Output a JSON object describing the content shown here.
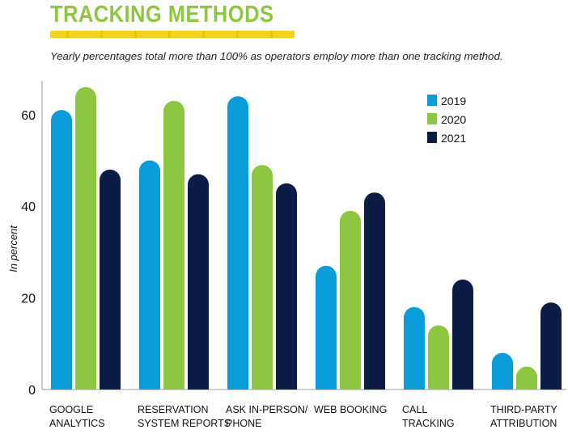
{
  "header": {
    "title": "TRACKING METHODS",
    "subtitle": "Yearly percentages total more than 100% as operators employ more than one tracking method."
  },
  "colors": {
    "title": "#8dc63f",
    "underline": "#f2d11f",
    "series_2019": "#0a9bd9",
    "series_2020": "#8dc63f",
    "series_2021": "#0c1c44",
    "axis": "#9a9a9a"
  },
  "chart_data": {
    "type": "bar",
    "categories": [
      [
        "GOOGLE",
        "ANALYTICS"
      ],
      [
        "RESERVATION",
        "SYSTEM REPORTS"
      ],
      [
        "ASK IN-PERSON/",
        "PHONE"
      ],
      [
        "WEB BOOKING"
      ],
      [
        "CALL",
        "TRACKING"
      ],
      [
        "THIRD-PARTY",
        "ATTRIBUTION"
      ]
    ],
    "series": [
      {
        "name": "2019",
        "color": "#0a9bd9",
        "values": [
          61,
          50,
          64,
          27,
          18,
          8
        ]
      },
      {
        "name": "2020",
        "color": "#8dc63f",
        "values": [
          66,
          63,
          49,
          39,
          14,
          5
        ]
      },
      {
        "name": "2021",
        "color": "#0c1c44",
        "values": [
          48,
          47,
          45,
          43,
          24,
          19
        ]
      }
    ],
    "ylabel": "In percent",
    "yticks": [
      0,
      20,
      40,
      60
    ],
    "ylim": [
      0,
      68
    ],
    "legend_position": "top-right",
    "grid": false
  }
}
